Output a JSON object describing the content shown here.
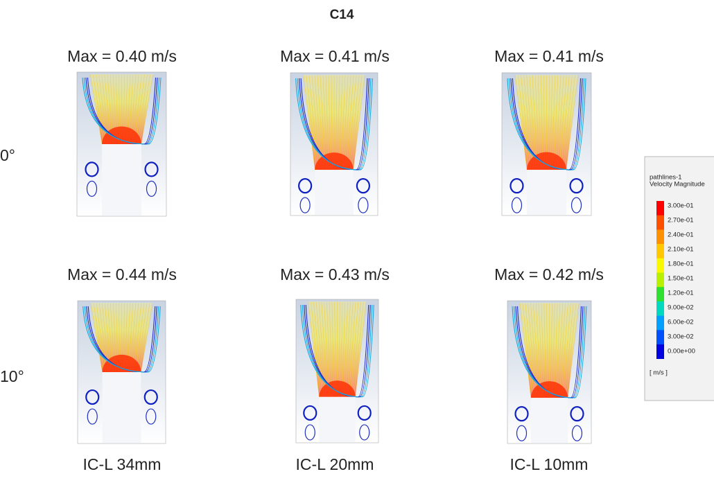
{
  "title": "C14",
  "rows": [
    {
      "label": "0°",
      "panels": [
        {
          "max": "Max = 0.40 m/s"
        },
        {
          "max": "Max = 0.41 m/s"
        },
        {
          "max": "Max = 0.41 m/s"
        }
      ]
    },
    {
      "label": "10°",
      "panels": [
        {
          "max": "Max = 0.44 m/s"
        },
        {
          "max": "Max = 0.43 m/s"
        },
        {
          "max": "Max = 0.42 m/s"
        }
      ]
    }
  ],
  "columns": [
    "IC-L 34mm",
    "IC-L 20mm",
    "IC-L 10mm"
  ],
  "legend": {
    "title": [
      "pathlines-1",
      "Velocity Magnitude"
    ],
    "ticks": [
      "3.00e-01",
      "2.70e-01",
      "2.40e-01",
      "2.10e-01",
      "1.80e-01",
      "1.50e-01",
      "1.20e-01",
      "9.00e-02",
      "6.00e-02",
      "3.00e-02",
      "0.00e+00"
    ],
    "unit": "[ m/s ]"
  }
}
